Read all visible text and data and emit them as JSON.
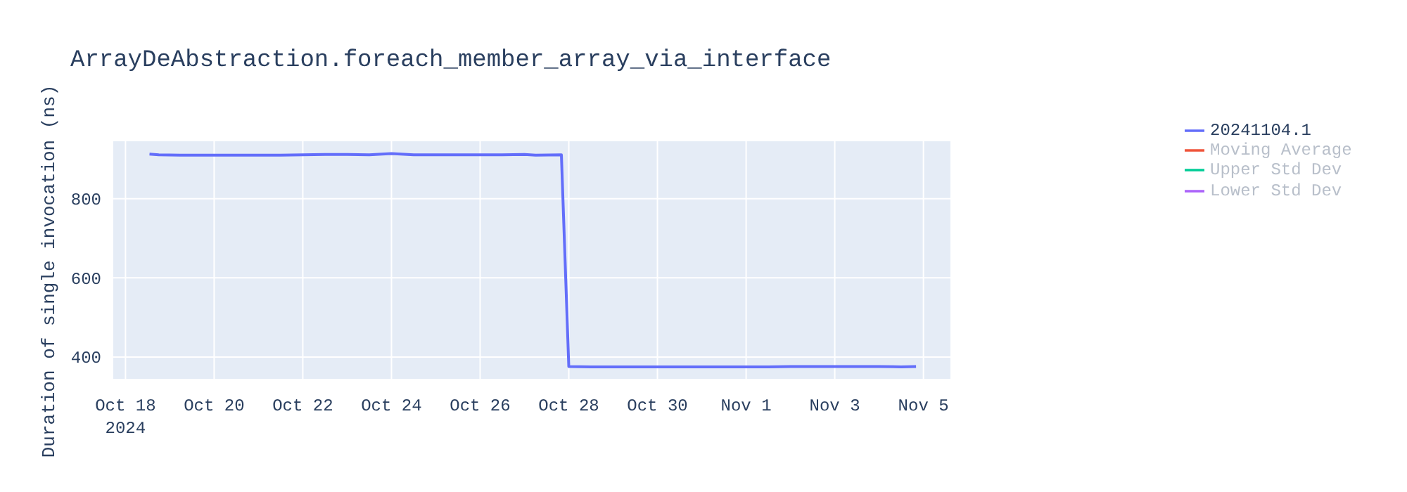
{
  "chart_data": {
    "type": "line",
    "title": "ArrayDeAbstraction.foreach_member_array_via_interface",
    "ylabel": "Duration of single invocation (ns)",
    "x": [
      "2024-10-18T13:00",
      "2024-10-18T18:00",
      "2024-10-19T06:00",
      "2024-10-19T18:00",
      "2024-10-20T12:00",
      "2024-10-21T00:00",
      "2024-10-21T12:00",
      "2024-10-22T00:00",
      "2024-10-22T12:00",
      "2024-10-23T00:00",
      "2024-10-23T12:00",
      "2024-10-24T00:00",
      "2024-10-24T12:00",
      "2024-10-25T00:00",
      "2024-10-25T12:00",
      "2024-10-26T00:00",
      "2024-10-26T12:00",
      "2024-10-27T00:00",
      "2024-10-27T06:00",
      "2024-10-27T20:00",
      "2024-10-28T00:00",
      "2024-10-28T12:00",
      "2024-10-29T00:00",
      "2024-10-29T12:00",
      "2024-10-30T00:00",
      "2024-10-30T12:00",
      "2024-10-31T00:00",
      "2024-10-31T12:00",
      "2024-11-01T00:00",
      "2024-11-01T12:00",
      "2024-11-02T00:00",
      "2024-11-02T12:00",
      "2024-11-03T00:00",
      "2024-11-03T12:00",
      "2024-11-04T00:00",
      "2024-11-04T12:00",
      "2024-11-04T20:00"
    ],
    "series": [
      {
        "name": "20241104.1",
        "color": "#636efa",
        "values": [
          913,
          911,
          910,
          910,
          910,
          910,
          910,
          911,
          912,
          912,
          911,
          914,
          911,
          911,
          911,
          911,
          911,
          912,
          910,
          911,
          376,
          375,
          375,
          375,
          375,
          375,
          375,
          375,
          375,
          375,
          376,
          376,
          376,
          376,
          376,
          375,
          376
        ]
      },
      {
        "name": "Moving Average",
        "color": "#ef553b",
        "values": [
          null,
          null,
          null,
          null,
          null,
          null,
          null,
          null,
          null,
          null,
          null,
          null,
          null,
          null,
          null,
          null,
          null,
          null,
          null,
          null,
          null,
          null,
          null,
          null,
          null,
          null,
          null,
          null,
          null,
          null,
          null,
          null,
          null,
          null,
          null,
          null,
          null
        ]
      },
      {
        "name": "Upper Std Dev",
        "color": "#00cc96",
        "values": [
          null,
          null,
          null,
          null,
          null,
          null,
          null,
          null,
          null,
          null,
          null,
          null,
          null,
          null,
          null,
          null,
          null,
          null,
          null,
          null,
          null,
          null,
          null,
          null,
          null,
          null,
          null,
          null,
          null,
          null,
          null,
          null,
          null,
          null,
          null,
          null,
          null
        ]
      },
      {
        "name": "Lower Std Dev",
        "color": "#ab63fa",
        "values": [
          null,
          null,
          null,
          null,
          null,
          null,
          null,
          null,
          null,
          null,
          null,
          null,
          null,
          null,
          null,
          null,
          null,
          null,
          null,
          null,
          null,
          null,
          null,
          null,
          null,
          null,
          null,
          null,
          null,
          null,
          null,
          null,
          null,
          null,
          null,
          null,
          null
        ]
      }
    ],
    "xlim": [
      "2024-10-17T17:00",
      "2024-11-05T15:00"
    ],
    "xticks": [
      {
        "value": "2024-10-18",
        "label": "Oct 18\n2024"
      },
      {
        "value": "2024-10-20",
        "label": "Oct 20"
      },
      {
        "value": "2024-10-22",
        "label": "Oct 22"
      },
      {
        "value": "2024-10-24",
        "label": "Oct 24"
      },
      {
        "value": "2024-10-26",
        "label": "Oct 26"
      },
      {
        "value": "2024-10-28",
        "label": "Oct 28"
      },
      {
        "value": "2024-10-30",
        "label": "Oct 30"
      },
      {
        "value": "2024-11-01",
        "label": "Nov 1"
      },
      {
        "value": "2024-11-03",
        "label": "Nov 3"
      },
      {
        "value": "2024-11-05",
        "label": "Nov 5"
      }
    ],
    "ylim": [
      343,
      947
    ],
    "yticks": [
      400,
      600,
      800
    ],
    "grid": true,
    "legend": "top right",
    "marker": "none",
    "line_style": "solid"
  }
}
